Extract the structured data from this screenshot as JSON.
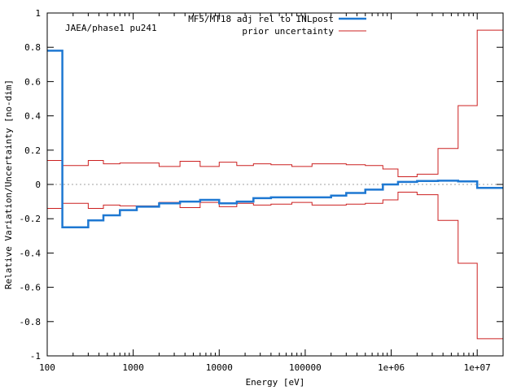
{
  "chart_data": {
    "type": "line",
    "subtitle": "JAEA/phase1 pu241",
    "xlabel": "Energy [eV]",
    "ylabel": "Relative Variation/Uncertainty [no-dim]",
    "xscale": "log",
    "xlim": [
      100,
      20000000
    ],
    "ylim": [
      -1,
      1
    ],
    "x_ticks": [
      {
        "value": 100,
        "label": "100"
      },
      {
        "value": 1000,
        "label": "1000"
      },
      {
        "value": 10000,
        "label": "10000"
      },
      {
        "value": 100000,
        "label": "100000"
      },
      {
        "value": 1000000,
        "label": "1e+06"
      },
      {
        "value": 10000000,
        "label": "1e+07"
      }
    ],
    "y_ticks": [
      {
        "value": 1,
        "label": "1"
      },
      {
        "value": 0.8,
        "label": "0.8"
      },
      {
        "value": 0.6,
        "label": "0.6"
      },
      {
        "value": 0.4,
        "label": "0.4"
      },
      {
        "value": 0.2,
        "label": "0.2"
      },
      {
        "value": 0,
        "label": "0"
      },
      {
        "value": -0.2,
        "label": "-0.2"
      },
      {
        "value": -0.4,
        "label": "-0.4"
      },
      {
        "value": -0.6,
        "label": "-0.6"
      },
      {
        "value": -0.8,
        "label": "-0.8"
      },
      {
        "value": -1,
        "label": "-1"
      }
    ],
    "zero_line": true,
    "legend_position": "top-right",
    "series": [
      {
        "name": "MF5/MT18 adj rel to INLpost",
        "color": "#1e78d2",
        "style": "step",
        "bin_edges": [
          100,
          150,
          300,
          450,
          700,
          1100,
          2000,
          3500,
          6000,
          10000,
          16000,
          25000,
          40000,
          70000,
          120000,
          200000,
          300000,
          500000,
          800000,
          1200000,
          2000000,
          3500000,
          6000000,
          10000000,
          20000000
        ],
        "values": [
          0.78,
          -0.25,
          -0.21,
          -0.18,
          -0.15,
          -0.13,
          -0.11,
          -0.1,
          -0.09,
          -0.11,
          -0.1,
          -0.08,
          -0.075,
          -0.075,
          -0.075,
          -0.065,
          -0.05,
          -0.03,
          0.0,
          0.015,
          0.02,
          0.022,
          0.018,
          -0.02
        ]
      },
      {
        "name": "prior uncertainty",
        "color": "#cc2020",
        "style": "step",
        "mirrored": true,
        "bin_edges": [
          100,
          150,
          300,
          450,
          700,
          1100,
          2000,
          3500,
          6000,
          10000,
          16000,
          25000,
          40000,
          70000,
          120000,
          200000,
          300000,
          500000,
          800000,
          1200000,
          2000000,
          3500000,
          6000000,
          10000000,
          20000000
        ],
        "values": [
          0.14,
          0.11,
          0.14,
          0.12,
          0.125,
          0.125,
          0.105,
          0.135,
          0.105,
          0.13,
          0.11,
          0.12,
          0.115,
          0.105,
          0.12,
          0.12,
          0.115,
          0.11,
          0.09,
          0.045,
          0.06,
          0.21,
          0.46,
          0.9
        ]
      }
    ]
  }
}
